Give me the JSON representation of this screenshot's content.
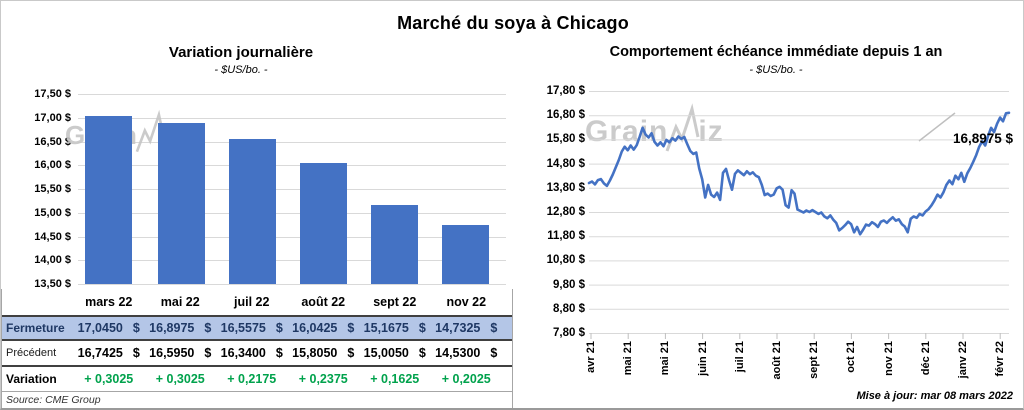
{
  "page": {
    "title": "Marché du soya à Chicago",
    "source": "Source: CME Group",
    "updated": "Mise à jour: mar 08 mars 2022",
    "watermark": "GrainWiz",
    "currency": "$"
  },
  "colors": {
    "series_blue": "#4472C4",
    "grid_gray": "#D9D9D9",
    "fermeture_bg": "#B4C6E7",
    "fermeture_text": "#1F3864",
    "variation_green": "#00A24C",
    "watermark_gray": "#C6C6C6"
  },
  "chart_data": [
    {
      "id": "variation-journaliere",
      "type": "bar",
      "title": "Variation  journalière",
      "subtitle": "- $US/bo. -",
      "categories": [
        "mars 22",
        "mai 22",
        "juil 22",
        "août 22",
        "sept 22",
        "nov 22"
      ],
      "values": [
        17.045,
        16.8975,
        16.5575,
        16.0425,
        15.1675,
        14.7325
      ],
      "ylim": [
        13.5,
        17.5
      ],
      "ytick_labels": [
        "17,50 $",
        "17,00 $",
        "16,50 $",
        "16,00 $",
        "15,50 $",
        "15,00 $",
        "14,50 $",
        "14,00 $",
        "13,50 $"
      ],
      "grid": true,
      "bar_color": "#4472C4"
    },
    {
      "id": "echeance-immediate",
      "type": "line",
      "title": "Comportement  échéance immédiate depuis 1 an",
      "subtitle": "- $US/bo. -",
      "x_tick_labels": [
        "avr 21",
        "mai 21",
        "mai 21",
        "juin 21",
        "juil 21",
        "août 21",
        "sept 21",
        "oct 21",
        "nov 21",
        "déc 21",
        "janv 22",
        "févr 22"
      ],
      "ylim": [
        7.8,
        17.8
      ],
      "ytick_labels": [
        "17,80 $",
        "16,80 $",
        "15,80 $",
        "14,80 $",
        "13,80 $",
        "12,80 $",
        "11,80 $",
        "10,80 $",
        "9,80 $",
        "8,80 $",
        "7,80 $"
      ],
      "grid": true,
      "line_color": "#4472C4",
      "end_label": "16,8975 $",
      "last_value": 16.8975,
      "values": [
        14.0,
        14.06,
        13.94,
        14.12,
        14.16,
        13.98,
        13.88,
        14.1,
        14.35,
        14.65,
        14.95,
        15.3,
        15.5,
        15.35,
        15.55,
        15.38,
        15.56,
        15.9,
        16.28,
        16.0,
        15.88,
        16.05,
        15.7,
        15.55,
        15.68,
        15.52,
        15.78,
        15.68,
        15.85,
        15.75,
        15.92,
        15.82,
        15.9,
        15.6,
        15.32,
        15.2,
        15.26,
        14.6,
        14.15,
        13.4,
        13.92,
        13.52,
        13.42,
        13.6,
        13.3,
        14.42,
        14.58,
        14.12,
        13.72,
        14.38,
        14.52,
        14.42,
        14.32,
        14.48,
        14.36,
        14.44,
        14.3,
        14.24,
        13.92,
        13.5,
        13.56,
        13.46,
        13.52,
        13.78,
        13.84,
        13.72,
        13.08,
        12.98,
        13.7,
        13.56,
        12.9,
        12.84,
        12.78,
        12.86,
        12.8,
        12.88,
        12.8,
        12.72,
        12.78,
        12.62,
        12.54,
        12.66,
        12.48,
        12.35,
        12.04,
        12.14,
        12.26,
        12.4,
        12.3,
        11.96,
        12.18,
        11.88,
        12.06,
        12.28,
        12.24,
        12.38,
        12.3,
        12.18,
        12.4,
        12.45,
        12.35,
        12.48,
        12.58,
        12.44,
        12.5,
        12.3,
        12.2,
        11.96,
        12.52,
        12.62,
        12.56,
        12.72,
        12.66,
        12.82,
        12.92,
        13.08,
        13.28,
        13.52,
        13.4,
        13.62,
        13.92,
        14.1,
        13.95,
        14.3,
        14.15,
        14.42,
        14.05,
        14.4,
        14.62,
        14.88,
        15.15,
        15.5,
        15.72,
        15.55,
        15.95,
        16.28,
        16.1,
        16.45,
        16.7,
        16.55,
        16.88,
        16.9
      ]
    }
  ],
  "table": {
    "col_headers": [
      "mars 22",
      "mai 22",
      "juil 22",
      "août 22",
      "sept 22",
      "nov 22"
    ],
    "rows": [
      {
        "label": "Fermeture",
        "values": [
          "17,0450",
          "16,8975",
          "16,5575",
          "16,0425",
          "15,1675",
          "14,7325"
        ]
      },
      {
        "label": "Précédent",
        "values": [
          "16,7425",
          "16,5950",
          "16,3400",
          "15,8050",
          "15,0050",
          "14,5300"
        ]
      },
      {
        "label": "Variation",
        "values": [
          "+ 0,3025",
          "+ 0,3025",
          "+ 0,2175",
          "+ 0,2375",
          "+ 0,1625",
          "+ 0,2025"
        ]
      }
    ]
  }
}
